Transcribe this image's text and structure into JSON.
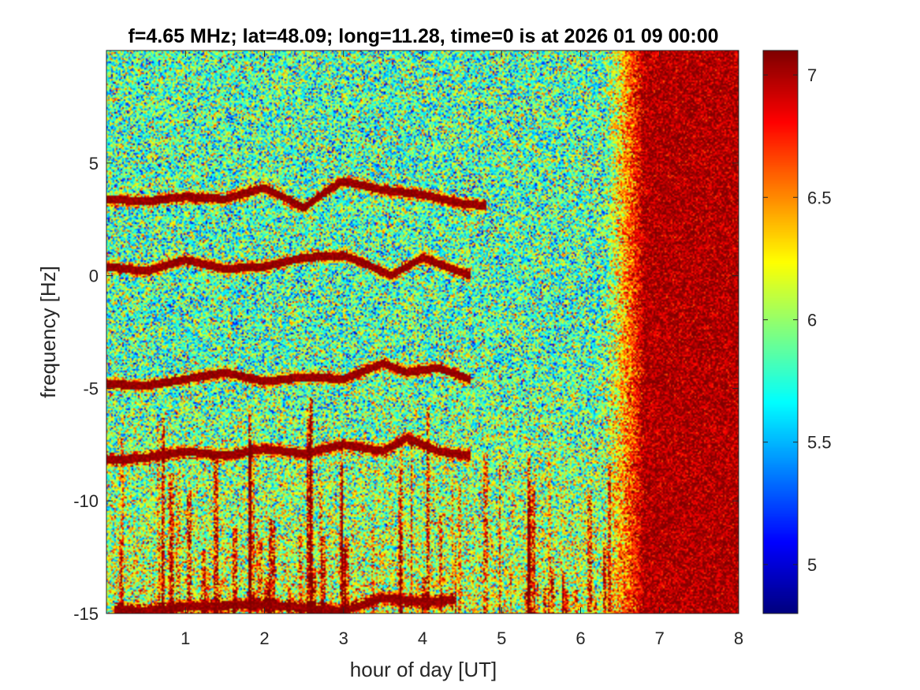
{
  "chart_data": {
    "type": "heatmap",
    "title": "f=4.65 MHz;  lat=48.09; long=11.28, time=0 is at 2026 01 09 00:00",
    "xlabel": "hour of day [UT]",
    "ylabel": "frequency [Hz]",
    "xlim": [
      0,
      8
    ],
    "ylim": [
      -15,
      10
    ],
    "x_ticks": [
      1,
      2,
      3,
      4,
      5,
      6,
      7,
      8
    ],
    "x_tick_labels": [
      "1",
      "2",
      "3",
      "4",
      "5",
      "6",
      "7",
      "8"
    ],
    "y_ticks": [
      -15,
      -10,
      -5,
      0,
      5
    ],
    "y_tick_labels": [
      "-15",
      "-10",
      "-5",
      "0",
      "5"
    ],
    "colormap": "jet",
    "clim": [
      4.8,
      7.1
    ],
    "colorbar_ticks": [
      5,
      5.5,
      6,
      6.5,
      7
    ],
    "colorbar_tick_labels": [
      "5",
      "5.5",
      "6",
      "6.5",
      "7"
    ],
    "background_level": 5.85,
    "high_level_region": {
      "x_start": 6.8,
      "x_end": 8.0,
      "value": 7.0
    },
    "transition_region": {
      "x_start": 6.3,
      "x_end": 6.8
    },
    "traces": [
      {
        "x": [
          0.0,
          0.5,
          1.0,
          1.5,
          2.0,
          2.5,
          2.8,
          3.0,
          3.5,
          4.0,
          4.5,
          4.8
        ],
        "y": [
          3.4,
          3.3,
          3.5,
          3.4,
          3.9,
          3.0,
          3.8,
          4.2,
          3.8,
          3.6,
          3.2,
          3.1
        ]
      },
      {
        "x": [
          0.0,
          0.5,
          1.0,
          1.5,
          2.0,
          2.5,
          3.0,
          3.3,
          3.6,
          4.0,
          4.3,
          4.6
        ],
        "y": [
          0.4,
          0.2,
          0.7,
          0.3,
          0.4,
          0.8,
          0.9,
          0.5,
          0.0,
          0.8,
          0.4,
          0.0
        ]
      },
      {
        "x": [
          0.0,
          0.5,
          1.0,
          1.5,
          2.0,
          2.5,
          3.0,
          3.5,
          3.8,
          4.2,
          4.6
        ],
        "y": [
          -4.8,
          -4.9,
          -4.6,
          -4.3,
          -4.7,
          -4.5,
          -4.6,
          -3.9,
          -4.3,
          -4.1,
          -4.6
        ]
      },
      {
        "x": [
          0.0,
          0.5,
          1.0,
          1.5,
          2.0,
          2.5,
          3.0,
          3.5,
          3.8,
          4.2,
          4.6
        ],
        "y": [
          -8.2,
          -8.1,
          -7.8,
          -8.0,
          -7.7,
          -7.9,
          -7.5,
          -7.8,
          -7.2,
          -7.8,
          -8.0
        ]
      },
      {
        "x": [
          0.1,
          0.5,
          1.0,
          2.0,
          3.0,
          3.5,
          4.0,
          4.4
        ],
        "y": [
          -14.8,
          -14.9,
          -14.7,
          -14.6,
          -14.9,
          -14.3,
          -14.5,
          -14.4
        ]
      }
    ]
  }
}
